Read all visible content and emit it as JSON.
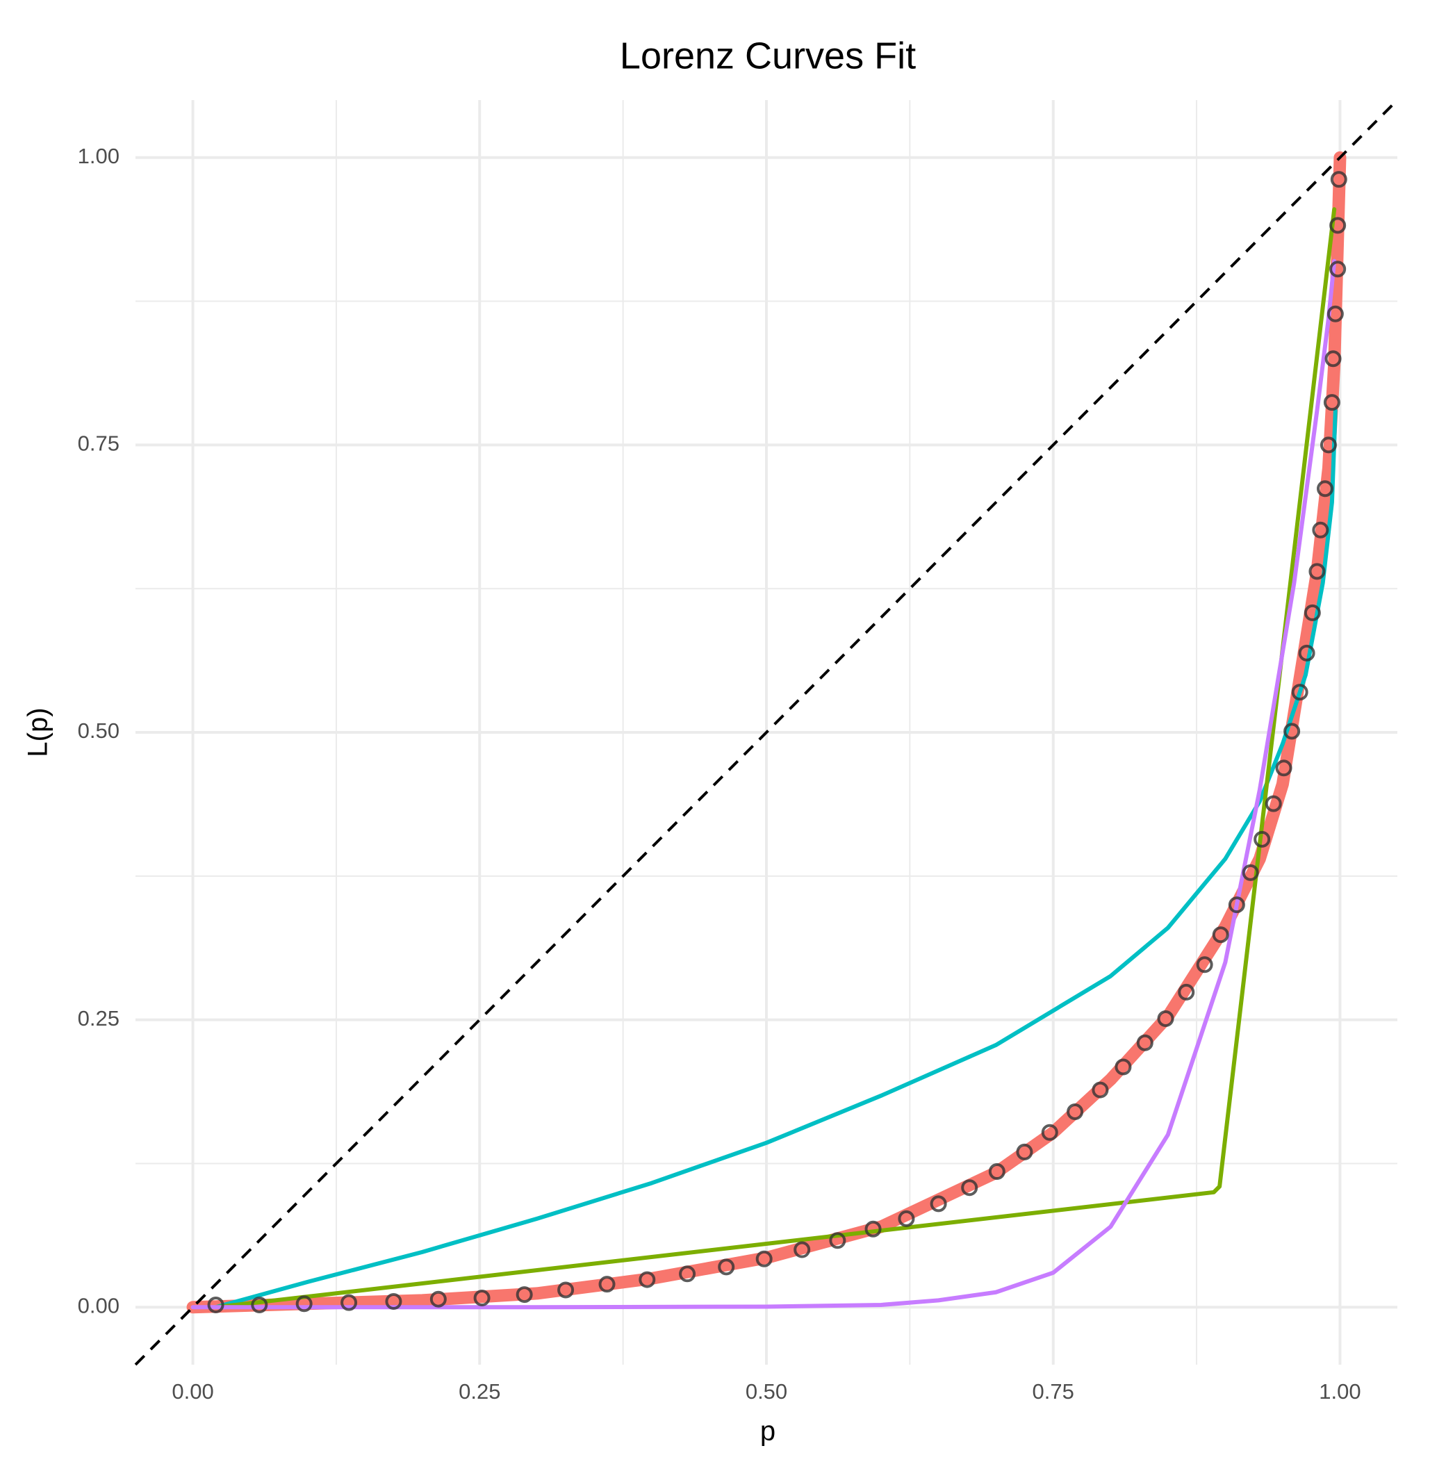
{
  "chart_data": {
    "type": "line",
    "title": "Lorenz Curves Fit",
    "x_label": "p",
    "y_label": "L(p)",
    "xlim": [
      -0.05,
      1.05
    ],
    "ylim": [
      -0.05,
      1.05
    ],
    "grid": true,
    "minor_grid": true,
    "xticks": [
      {
        "value": 0,
        "label": "0.00"
      },
      {
        "value": 0.25,
        "label": "0.25"
      },
      {
        "value": 0.5,
        "label": "0.50"
      },
      {
        "value": 0.75,
        "label": "0.75"
      },
      {
        "value": 1,
        "label": "1.00"
      }
    ],
    "yticks": [
      {
        "value": 0,
        "label": "0.00"
      },
      {
        "value": 0.25,
        "label": "0.25"
      },
      {
        "value": 0.5,
        "label": "0.50"
      },
      {
        "value": 0.75,
        "label": "0.75"
      },
      {
        "value": 1,
        "label": "1.00"
      }
    ],
    "series": [
      {
        "type": "line",
        "color": "#f8766d",
        "x": [
          0,
          0.1,
          0.2,
          0.3,
          0.4,
          0.5,
          0.6,
          0.7,
          0.75,
          0.8,
          0.85,
          0.9,
          0.93,
          0.95,
          0.97,
          0.98,
          0.99,
          0.995,
          1
        ],
        "values": [
          0,
          0.003,
          0.006,
          0.012,
          0.025,
          0.043,
          0.07,
          0.117,
          0.152,
          0.198,
          0.253,
          0.331,
          0.39,
          0.455,
          0.578,
          0.64,
          0.73,
          0.82,
          1
        ]
      },
      {
        "type": "line",
        "color": "#00bfc4",
        "x": [
          0.02,
          0.1,
          0.2,
          0.3,
          0.4,
          0.5,
          0.6,
          0.7,
          0.8,
          0.85,
          0.9,
          0.93,
          0.95,
          0.97,
          0.985,
          0.993,
          0.996
        ],
        "values": [
          0,
          0.022,
          0.048,
          0.077,
          0.108,
          0.143,
          0.184,
          0.228,
          0.288,
          0.33,
          0.39,
          0.44,
          0.49,
          0.55,
          0.63,
          0.7,
          0.78
        ]
      },
      {
        "type": "line",
        "color": "#7cae00",
        "x": [
          0.02,
          0.89,
          0.895,
          0.995
        ],
        "values": [
          0,
          0.1,
          0.105,
          0.955
        ]
      },
      {
        "type": "line",
        "color": "#c77cff",
        "x": [
          0,
          0.3,
          0.5,
          0.6,
          0.65,
          0.7,
          0.75,
          0.8,
          0.85,
          0.9,
          0.93,
          0.96,
          0.98,
          0.99,
          0.995
        ],
        "values": [
          0,
          0,
          0.0005,
          0.002,
          0.006,
          0.013,
          0.03,
          0.07,
          0.15,
          0.3,
          0.45,
          0.63,
          0.78,
          0.86,
          0.91
        ]
      },
      {
        "type": "scatter",
        "color": "#333333",
        "x": [
          0.02,
          0.058,
          0.097,
          0.136,
          0.175,
          0.214,
          0.252,
          0.289,
          0.325,
          0.361,
          0.396,
          0.431,
          0.465,
          0.498,
          0.531,
          0.562,
          0.593,
          0.622,
          0.65,
          0.677,
          0.701,
          0.725,
          0.747,
          0.769,
          0.791,
          0.811,
          0.83,
          0.848,
          0.866,
          0.882,
          0.896,
          0.91,
          0.922,
          0.932,
          0.942,
          0.951,
          0.958,
          0.965,
          0.971,
          0.976,
          0.98,
          0.983,
          0.987,
          0.99,
          0.993,
          0.994,
          0.996,
          0.998,
          0.998,
          0.999
        ],
        "values": [
          0.002,
          0.002,
          0.003,
          0.004,
          0.005,
          0.007,
          0.008,
          0.011,
          0.015,
          0.02,
          0.024,
          0.029,
          0.035,
          0.042,
          0.05,
          0.058,
          0.068,
          0.077,
          0.09,
          0.104,
          0.118,
          0.135,
          0.152,
          0.17,
          0.189,
          0.209,
          0.23,
          0.251,
          0.274,
          0.298,
          0.324,
          0.35,
          0.378,
          0.407,
          0.438,
          0.469,
          0.501,
          0.535,
          0.569,
          0.604,
          0.64,
          0.676,
          0.712,
          0.75,
          0.787,
          0.825,
          0.864,
          0.903,
          0.941,
          0.981
        ]
      },
      {
        "type": "line",
        "color": "#000000",
        "dash": true,
        "x": [
          -0.05,
          1.05
        ],
        "values": [
          -0.05,
          1.05
        ]
      }
    ]
  }
}
